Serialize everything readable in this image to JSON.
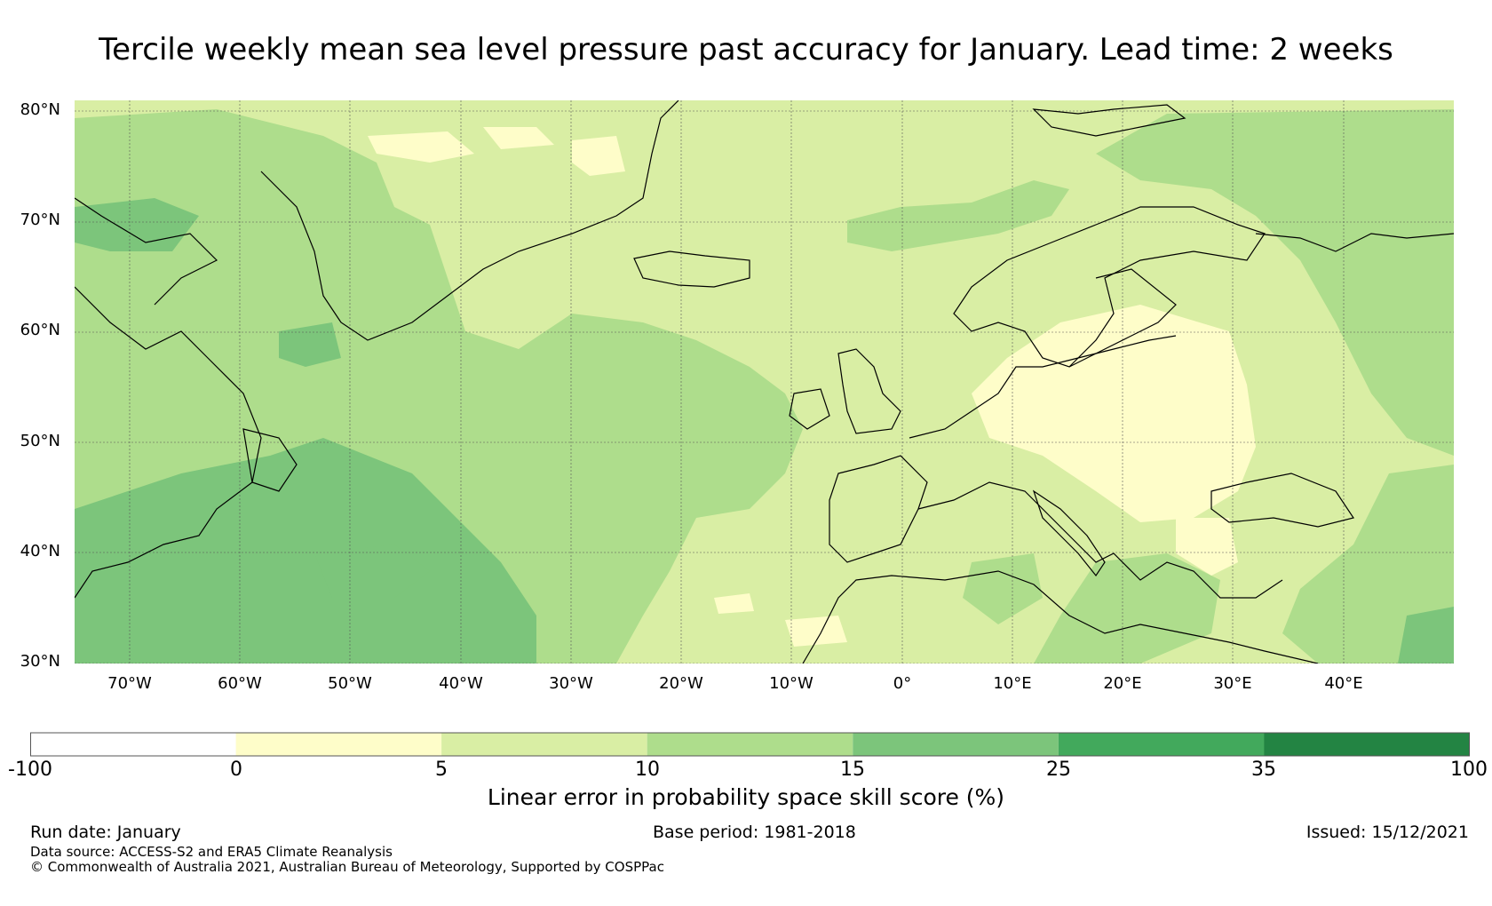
{
  "title": "Tercile weekly mean sea level pressure past accuracy for January. Lead time: 2 weeks",
  "map": {
    "region": "North Atlantic and Europe",
    "lat_labels": [
      "80°N",
      "70°N",
      "60°N",
      "50°N",
      "40°N",
      "30°N"
    ],
    "lon_labels": [
      "70°W",
      "60°W",
      "50°W",
      "40°W",
      "30°W",
      "20°W",
      "10°W",
      "0°",
      "10°E",
      "20°E",
      "30°E",
      "40°E"
    ],
    "lat_range": [
      30,
      81
    ],
    "lon_range": [
      -75,
      50
    ],
    "colors": {
      "class_0_5": "#fefdc9",
      "class_5_10": "#d9eea4",
      "class_10_15": "#aedd8c",
      "class_15_25": "#7cc57b",
      "class_25_35": "#42a95c",
      "class_35_100": "#238443",
      "coast": "#000000"
    }
  },
  "colorbar": {
    "ticks": [
      "-100",
      "0",
      "5",
      "10",
      "15",
      "25",
      "35",
      "100"
    ],
    "colors": [
      "#ffffff",
      "#fefdc9",
      "#d9eea4",
      "#aedd8c",
      "#7cc57b",
      "#42a95c",
      "#238443"
    ],
    "label": "Linear error in probability space skill score (%)"
  },
  "footer": {
    "run_date": "Run date: January",
    "base_period": "Base period: 1981-2018",
    "issued": "Issued: 15/12/2021",
    "data_source": "Data source: ACCESS-S2 and ERA5 Climate Reanalysis",
    "copyright": "© Commonwealth of Australia 2021, Australian Bureau of Meteorology, Supported by COSPPac"
  }
}
